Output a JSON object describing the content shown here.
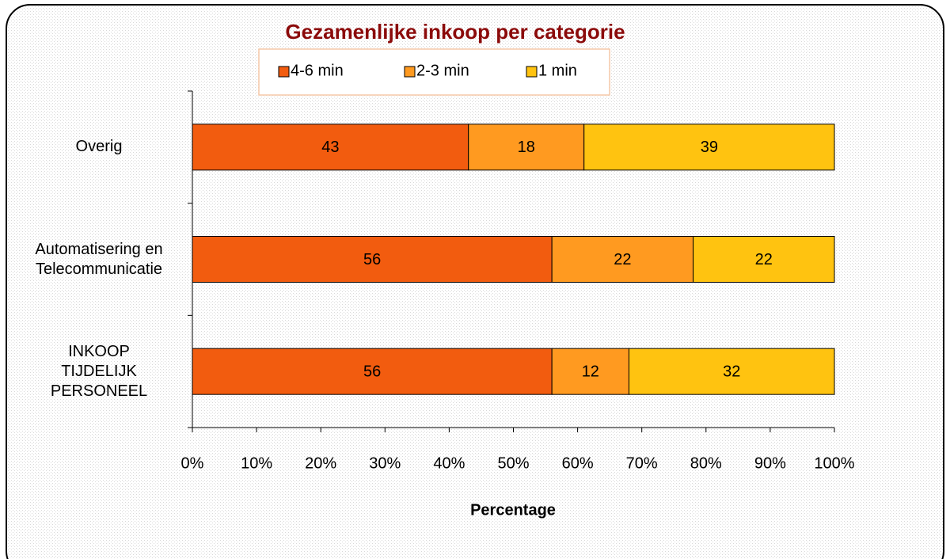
{
  "chart_data": {
    "type": "stacked_bar_horizontal",
    "title": "Gezamenlijke inkoop per categorie",
    "x_label": "Percentage",
    "categories": [
      "Overig",
      "Automatisering en Telecommunicatie",
      "INKOOP TIJDELIJK PERSONEEL"
    ],
    "series": [
      {
        "name": "4-6 min",
        "color": "#f25c0f",
        "values": [
          43,
          56,
          56
        ]
      },
      {
        "name": "2-3 min",
        "color": "#ff9a20",
        "values": [
          18,
          22,
          12
        ]
      },
      {
        "name": "1 min",
        "color": "#ffc310",
        "values": [
          39,
          22,
          32
        ]
      }
    ],
    "xlim": [
      0,
      100
    ],
    "xticks": [
      {
        "value": 0,
        "label": "0%"
      },
      {
        "value": 10,
        "label": "10%"
      },
      {
        "value": 20,
        "label": "20%"
      },
      {
        "value": 30,
        "label": "30%"
      },
      {
        "value": 40,
        "label": "40%"
      },
      {
        "value": 50,
        "label": "50%"
      },
      {
        "value": 60,
        "label": "60%"
      },
      {
        "value": 70,
        "label": "70%"
      },
      {
        "value": 80,
        "label": "80%"
      },
      {
        "value": 90,
        "label": "90%"
      },
      {
        "value": 100,
        "label": "100%"
      }
    ],
    "legend": "top"
  }
}
